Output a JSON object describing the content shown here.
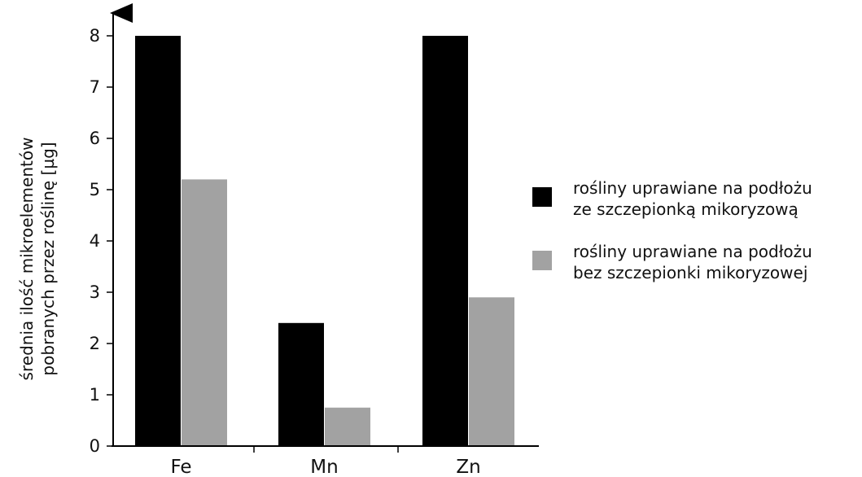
{
  "chart_data": {
    "type": "bar",
    "categories": [
      "Fe",
      "Mn",
      "Zn"
    ],
    "series": [
      {
        "legend_lines": [
          "rośliny uprawiane na podłożu",
          "ze szczepionką mikoryzową"
        ],
        "values": [
          8,
          2.4,
          8
        ],
        "color": "#000000"
      },
      {
        "legend_lines": [
          "rośliny uprawiane na podłożu",
          "bez szczepionki mikoryzowej"
        ],
        "values": [
          5.2,
          0.75,
          2.9
        ],
        "color": "#a2a2a2"
      }
    ],
    "ylabel_lines": [
      "średnia ilość mikroelementów",
      "pobranych przez roślinę [µg]"
    ],
    "xlabel": "",
    "ylim": [
      0,
      8
    ],
    "yticks": [
      "0",
      "1",
      "2",
      "3",
      "4",
      "5",
      "6",
      "7",
      "8"
    ],
    "grid": false,
    "legend_position": "right"
  }
}
